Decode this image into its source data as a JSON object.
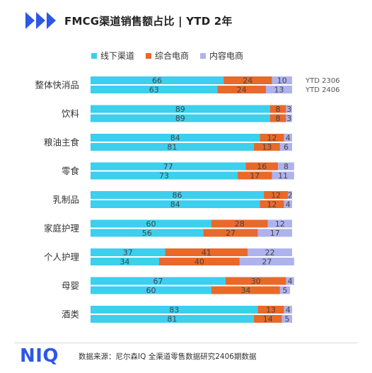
{
  "header": {
    "title": "FMCG渠道销售额占比 | YTD 2年"
  },
  "colors": {
    "accent": "#2e57e6",
    "offline": "#3ccfee",
    "ecommerce": "#e8692a",
    "content": "#aeb3ee"
  },
  "chart_data": {
    "type": "bar",
    "orientation": "horizontal-stacked-100",
    "categories": [
      "整体快消品",
      "饮料",
      "粮油主食",
      "零食",
      "乳制品",
      "家庭护理",
      "个人护理",
      "母婴",
      "酒类"
    ],
    "periods": [
      "YTD 2306",
      "YTD 2406"
    ],
    "series": [
      {
        "name": "线下渠道",
        "color": "#3ccfee",
        "values": [
          [
            66,
            63
          ],
          [
            89,
            89
          ],
          [
            84,
            81
          ],
          [
            77,
            73
          ],
          [
            86,
            84
          ],
          [
            60,
            56
          ],
          [
            37,
            34
          ],
          [
            67,
            60
          ],
          [
            83,
            81
          ]
        ]
      },
      {
        "name": "综合电商",
        "color": "#e8692a",
        "values": [
          [
            24,
            24
          ],
          [
            8,
            8
          ],
          [
            12,
            13
          ],
          [
            16,
            17
          ],
          [
            12,
            12
          ],
          [
            28,
            27
          ],
          [
            41,
            40
          ],
          [
            30,
            34
          ],
          [
            13,
            14
          ]
        ]
      },
      {
        "name": "内容电商",
        "color": "#aeb3ee",
        "values": [
          [
            10,
            13
          ],
          [
            3,
            3
          ],
          [
            4,
            6
          ],
          [
            8,
            11
          ],
          [
            2,
            4
          ],
          [
            12,
            17
          ],
          [
            22,
            27
          ],
          [
            4,
            5
          ],
          [
            4,
            5
          ]
        ]
      }
    ],
    "xlim": [
      0,
      100
    ],
    "legend": "top"
  },
  "footer": {
    "logo": "NIQ",
    "source": "数据来源：尼尔森IQ 全渠道零售数据研究2406期数据"
  }
}
